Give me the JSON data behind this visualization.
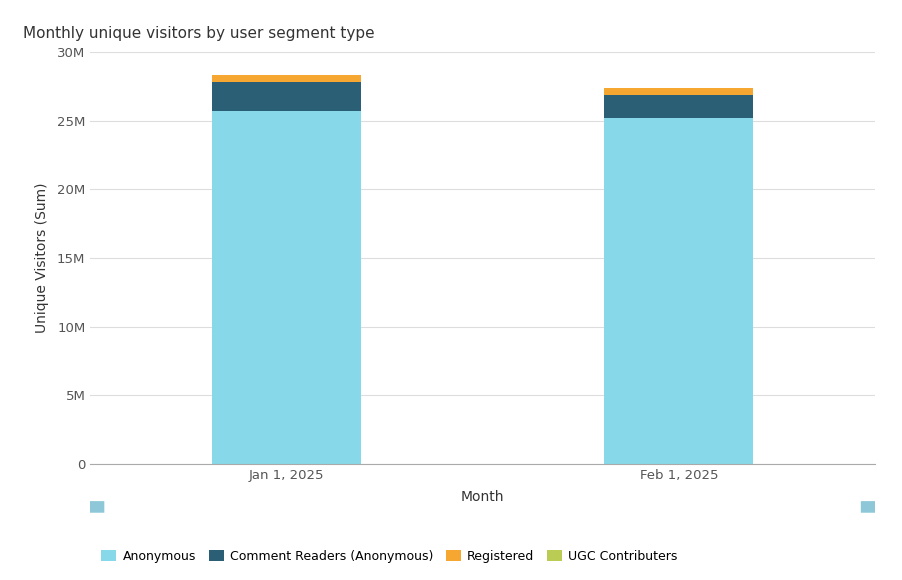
{
  "title": "Monthly unique visitors by user segment type",
  "xlabel": "Month",
  "ylabel": "Unique Visitors (Sum)",
  "months": [
    "Jan 1, 2025",
    "Feb 1, 2025"
  ],
  "segments": {
    "Anonymous": {
      "values": [
        25700000,
        25200000
      ],
      "color": "#87D8E8"
    },
    "Comment Readers (Anonymous)": {
      "values": [
        2100000,
        1700000
      ],
      "color": "#2B5F75"
    },
    "Registered": {
      "values": [
        550000,
        480000
      ],
      "color": "#F5A732"
    },
    "UGC Contributers": {
      "values": [
        10000,
        10000
      ],
      "color": "#BBCC55"
    }
  },
  "ylim": [
    0,
    30000000
  ],
  "yticks": [
    0,
    5000000,
    10000000,
    15000000,
    20000000,
    25000000,
    30000000
  ],
  "ytick_labels": [
    "0",
    "5M",
    "10M",
    "15M",
    "20M",
    "25M",
    "30M"
  ],
  "background_color": "#ffffff",
  "grid_color": "#dddddd",
  "bar_width": 0.38,
  "title_fontsize": 11,
  "axis_label_fontsize": 10,
  "tick_fontsize": 9.5
}
